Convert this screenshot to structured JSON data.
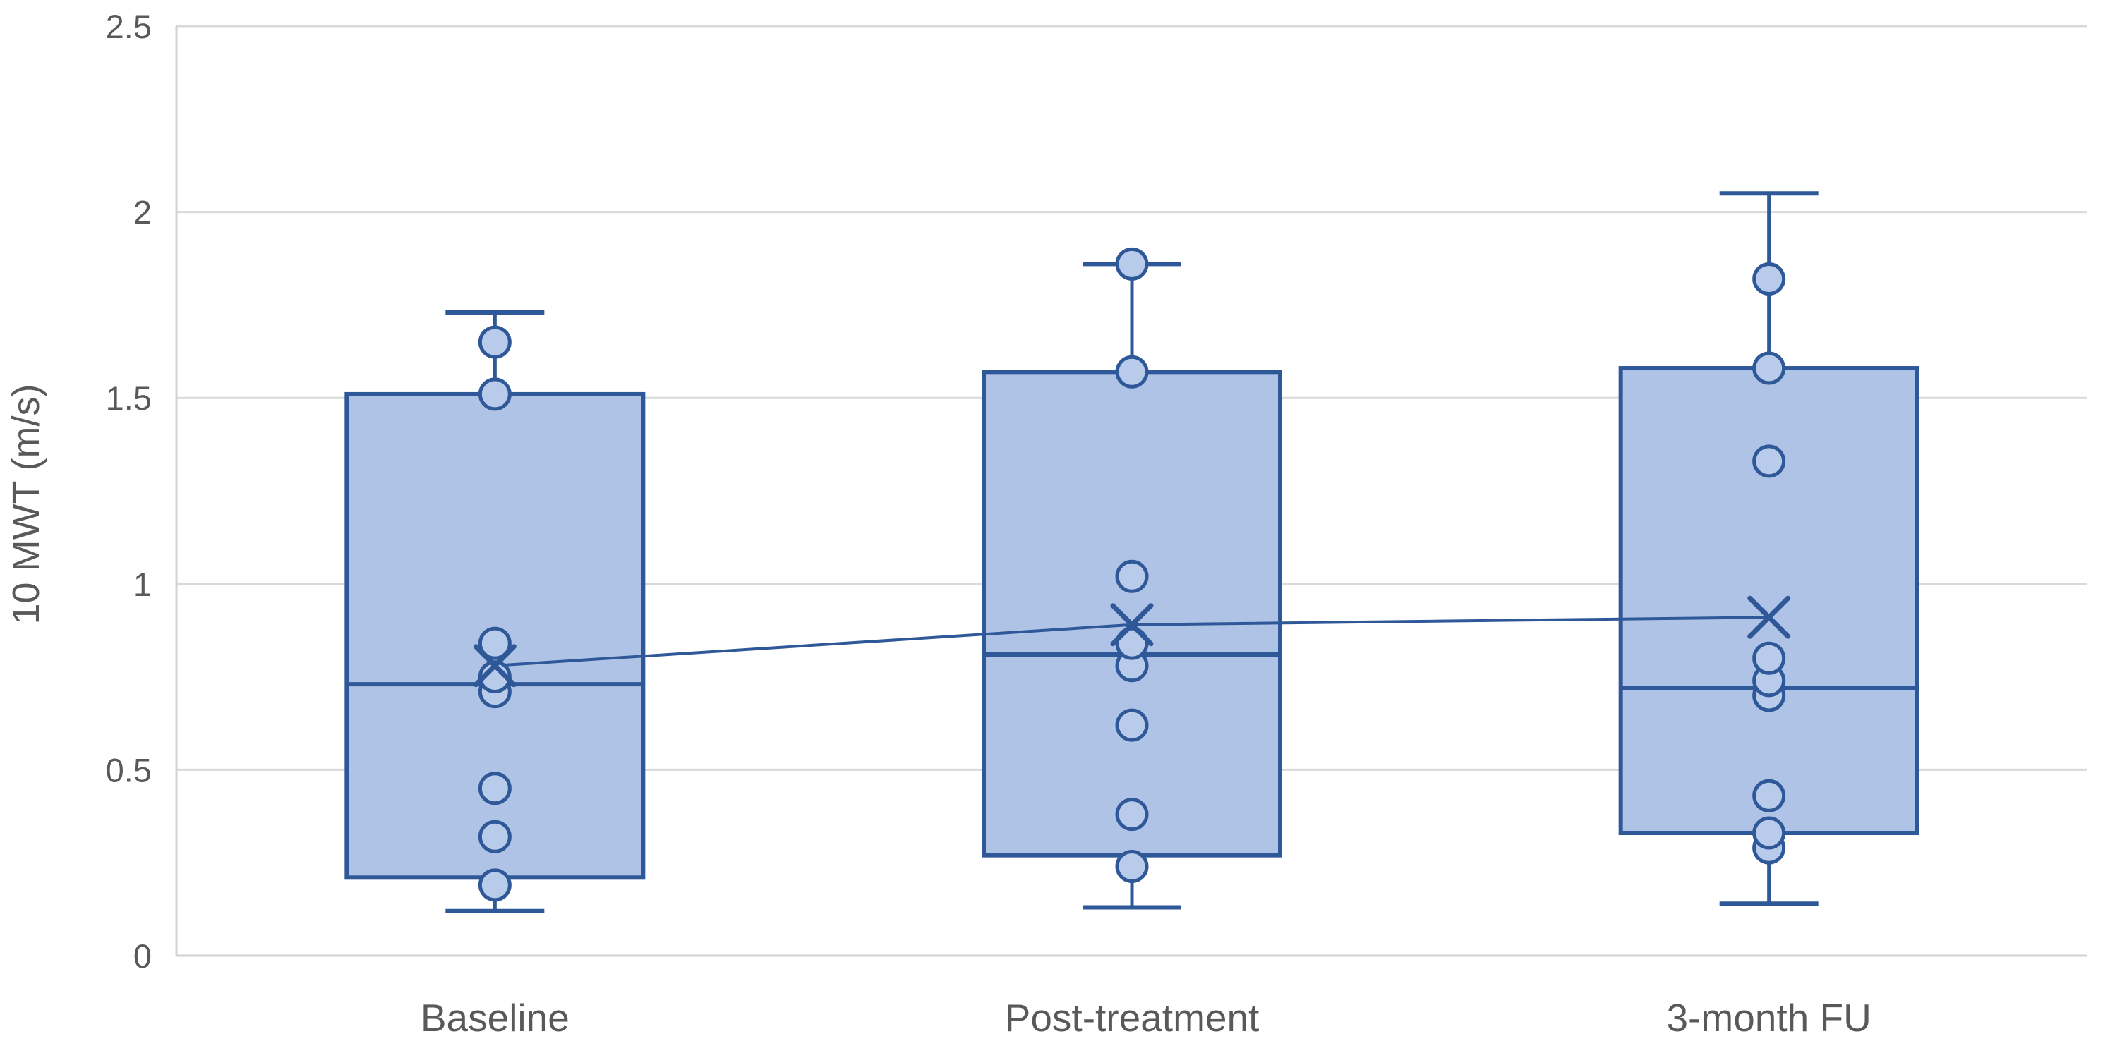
{
  "chart_data": {
    "type": "boxplot",
    "title": "",
    "xlabel": "",
    "ylabel": "10 MWT (m/s)",
    "ylim": [
      0,
      2.5
    ],
    "yticks": [
      0,
      0.5,
      1,
      1.5,
      2,
      2.5
    ],
    "ytick_labels": [
      "0",
      "0.5",
      "1",
      "1.5",
      "2",
      "2.5"
    ],
    "grid": true,
    "legend": false,
    "categories": [
      "Baseline",
      "Post-treatment",
      "3-month FU"
    ],
    "series": [
      {
        "name": "Baseline",
        "whisker_low": 0.12,
        "q1": 0.21,
        "median": 0.73,
        "q3": 1.51,
        "whisker_high": 1.73,
        "mean": 0.78,
        "points": [
          0.19,
          0.32,
          0.45,
          0.71,
          0.75,
          0.84,
          1.51,
          1.65
        ]
      },
      {
        "name": "Post-treatment",
        "whisker_low": 0.13,
        "q1": 0.27,
        "median": 0.81,
        "q3": 1.57,
        "whisker_high": 1.86,
        "mean": 0.89,
        "points": [
          0.24,
          0.38,
          0.62,
          0.78,
          0.84,
          1.02,
          1.57,
          1.86
        ]
      },
      {
        "name": "3-month FU",
        "whisker_low": 0.14,
        "q1": 0.33,
        "median": 0.72,
        "q3": 1.58,
        "whisker_high": 2.05,
        "mean": 0.91,
        "points": [
          0.29,
          0.33,
          0.43,
          0.7,
          0.74,
          0.8,
          1.33,
          1.58,
          1.82
        ]
      }
    ],
    "mean_line": [
      0.78,
      0.89,
      0.91
    ],
    "colors": {
      "box_fill": "#AFC3E6",
      "box_stroke": "#2F5898",
      "point_fill": "#B9CBEA",
      "mean_line": "#2F5898",
      "grid": "#D9D9D9",
      "axis": "#D2D2D2",
      "text": "#595959"
    }
  }
}
